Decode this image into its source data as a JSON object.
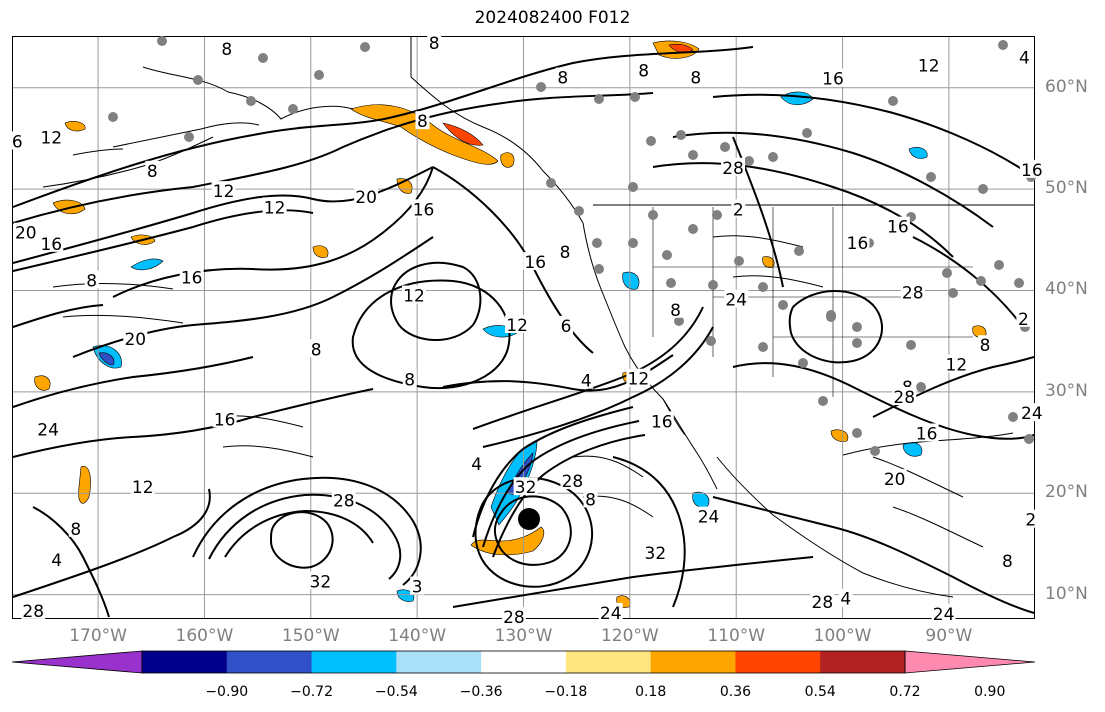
{
  "title": "2024082400 F012",
  "lat_labels": [
    {
      "value": 60,
      "text": "60°N"
    },
    {
      "value": 50,
      "text": "50°N"
    },
    {
      "value": 40,
      "text": "40°N"
    },
    {
      "value": 30,
      "text": "30°N"
    },
    {
      "value": 20,
      "text": "20°N"
    },
    {
      "value": 10,
      "text": "10°N"
    }
  ],
  "lon_labels": [
    {
      "value": -170,
      "text": "170°W"
    },
    {
      "value": -160,
      "text": "160°W"
    },
    {
      "value": -150,
      "text": "150°W"
    },
    {
      "value": -140,
      "text": "140°W"
    },
    {
      "value": -130,
      "text": "130°W"
    },
    {
      "value": -120,
      "text": "120°W"
    },
    {
      "value": -110,
      "text": "110°W"
    },
    {
      "value": -100,
      "text": "100°W"
    },
    {
      "value": -90,
      "text": "90°W"
    }
  ],
  "map_extent": {
    "lon_min": -178,
    "lon_max": -82,
    "lat_min": 7.7,
    "lat_max": 65
  },
  "colorbar": {
    "colors": [
      "#9932cc",
      "#00008b",
      "#3050c8",
      "#00bfff",
      "#aadff8",
      "#ffffff",
      "#ffe680",
      "#ffa500",
      "#ff4500",
      "#b22222",
      "#ff8ab0"
    ],
    "tick_labels": [
      "−0.90",
      "−0.72",
      "−0.54",
      "−0.36",
      "−0.18",
      "0.18",
      "0.36",
      "0.54",
      "0.72",
      "0.90"
    ]
  },
  "contour_labels": [
    {
      "text": "8",
      "lon": -157.9,
      "lat": 63.8
    },
    {
      "text": "8",
      "lon": -138.4,
      "lat": 64.4
    },
    {
      "text": "8",
      "lon": -126.3,
      "lat": 61.0
    },
    {
      "text": "8",
      "lon": -118.7,
      "lat": 61.7
    },
    {
      "text": "8",
      "lon": -113.8,
      "lat": 61.0
    },
    {
      "text": "16",
      "lon": -100.9,
      "lat": 60.9
    },
    {
      "text": "12",
      "lon": -91.9,
      "lat": 62.2
    },
    {
      "text": "4",
      "lon": -82.9,
      "lat": 63.0
    },
    {
      "text": "6",
      "lon": -177.6,
      "lat": 54.7
    },
    {
      "text": "12",
      "lon": -174.4,
      "lat": 55.1
    },
    {
      "text": "8",
      "lon": -164.9,
      "lat": 51.8
    },
    {
      "text": "12",
      "lon": -158.2,
      "lat": 49.8
    },
    {
      "text": "12",
      "lon": -153.4,
      "lat": 48.2
    },
    {
      "text": "20",
      "lon": -144.8,
      "lat": 49.2
    },
    {
      "text": "16",
      "lon": -139.4,
      "lat": 48.0
    },
    {
      "text": "8",
      "lon": -139.5,
      "lat": 56.7
    },
    {
      "text": "16",
      "lon": -128.9,
      "lat": 42.8
    },
    {
      "text": "8",
      "lon": -126.1,
      "lat": 43.8
    },
    {
      "text": "12",
      "lon": -140.3,
      "lat": 39.5
    },
    {
      "text": "12",
      "lon": -130.6,
      "lat": 36.6
    },
    {
      "text": "6",
      "lon": -126.0,
      "lat": 36.5
    },
    {
      "text": "4",
      "lon": -124.1,
      "lat": 31.1
    },
    {
      "text": "12",
      "lon": -119.2,
      "lat": 31.3
    },
    {
      "text": "16",
      "lon": -117.0,
      "lat": 27.1
    },
    {
      "text": "8",
      "lon": -115.7,
      "lat": 38.1
    },
    {
      "text": "24",
      "lon": -110.0,
      "lat": 39.1
    },
    {
      "text": "28",
      "lon": -110.3,
      "lat": 52.1
    },
    {
      "text": "2",
      "lon": -109.8,
      "lat": 48.0
    },
    {
      "text": "16",
      "lon": -98.6,
      "lat": 44.7
    },
    {
      "text": "16",
      "lon": -94.8,
      "lat": 46.3
    },
    {
      "text": "28",
      "lon": -93.4,
      "lat": 39.8
    },
    {
      "text": "8",
      "lon": -93.9,
      "lat": 30.5
    },
    {
      "text": "28",
      "lon": -94.2,
      "lat": 29.5
    },
    {
      "text": "16",
      "lon": -92.1,
      "lat": 25.9
    },
    {
      "text": "20",
      "lon": -95.1,
      "lat": 21.4
    },
    {
      "text": "12",
      "lon": -89.3,
      "lat": 32.7
    },
    {
      "text": "8",
      "lon": -86.6,
      "lat": 34.6
    },
    {
      "text": "24",
      "lon": -82.2,
      "lat": 27.9
    },
    {
      "text": "2",
      "lon": -83.0,
      "lat": 37.2
    },
    {
      "text": "16",
      "lon": -82.2,
      "lat": 51.9
    },
    {
      "text": "20",
      "lon": -176.8,
      "lat": 45.7
    },
    {
      "text": "16",
      "lon": -174.4,
      "lat": 44.6
    },
    {
      "text": "8",
      "lon": -170.6,
      "lat": 41.0
    },
    {
      "text": "16",
      "lon": -161.2,
      "lat": 41.3
    },
    {
      "text": "20",
      "lon": -166.5,
      "lat": 35.2
    },
    {
      "text": "8",
      "lon": -149.5,
      "lat": 34.2
    },
    {
      "text": "8",
      "lon": -140.7,
      "lat": 31.2
    },
    {
      "text": "16",
      "lon": -158.1,
      "lat": 27.3
    },
    {
      "text": "24",
      "lon": -174.7,
      "lat": 26.3
    },
    {
      "text": "12",
      "lon": -165.8,
      "lat": 20.6
    },
    {
      "text": "8",
      "lon": -172.1,
      "lat": 16.5
    },
    {
      "text": "4",
      "lon": -173.9,
      "lat": 13.4
    },
    {
      "text": "28",
      "lon": -176.1,
      "lat": 8.4
    },
    {
      "text": "32",
      "lon": -149.1,
      "lat": 11.3
    },
    {
      "text": "3",
      "lon": -140.0,
      "lat": 10.8
    },
    {
      "text": "28",
      "lon": -146.9,
      "lat": 19.3
    },
    {
      "text": "4",
      "lon": -134.4,
      "lat": 22.9
    },
    {
      "text": "32",
      "lon": -129.8,
      "lat": 20.6
    },
    {
      "text": "28",
      "lon": -125.4,
      "lat": 21.2
    },
    {
      "text": "8",
      "lon": -123.7,
      "lat": 19.4
    },
    {
      "text": "32",
      "lon": -117.6,
      "lat": 14.1
    },
    {
      "text": "28",
      "lon": -130.9,
      "lat": 7.8
    },
    {
      "text": "24",
      "lon": -121.8,
      "lat": 8.2
    },
    {
      "text": "24",
      "lon": -112.6,
      "lat": 17.7
    },
    {
      "text": "28",
      "lon": -101.9,
      "lat": 9.3
    },
    {
      "text": "4",
      "lon": -99.7,
      "lat": 9.6
    },
    {
      "text": "24",
      "lon": -90.5,
      "lat": 8.1
    },
    {
      "text": "8",
      "lon": -84.5,
      "lat": 13.3
    },
    {
      "text": "2",
      "lon": -82.3,
      "lat": 17.4
    }
  ]
}
